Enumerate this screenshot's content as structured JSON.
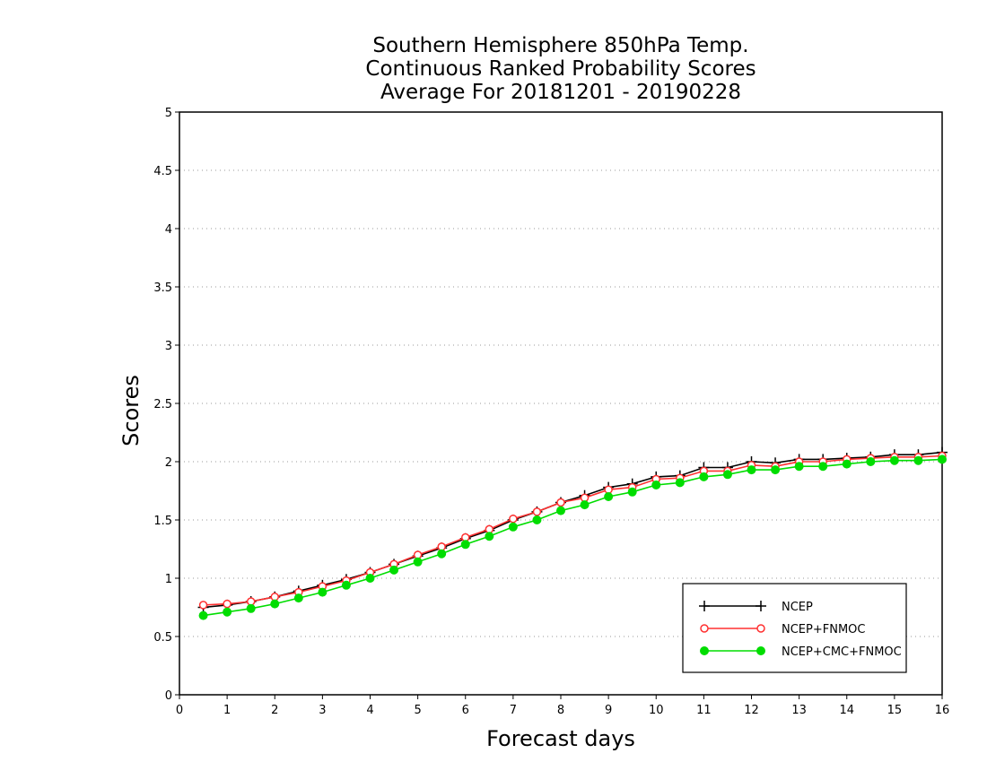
{
  "chart_data": {
    "type": "line",
    "title_lines": [
      "Southern Hemisphere 850hPa Temp.",
      "Continuous Ranked Probability Scores",
      "Average For 20181201 - 20190228"
    ],
    "xlabel": "Forecast days",
    "ylabel": "Scores",
    "xlim": [
      0,
      16
    ],
    "ylim": [
      0,
      5
    ],
    "xticks": [
      0,
      1,
      2,
      3,
      4,
      5,
      6,
      7,
      8,
      9,
      10,
      11,
      12,
      13,
      14,
      15,
      16
    ],
    "yticks": [
      0,
      0.5,
      1,
      1.5,
      2,
      2.5,
      3,
      3.5,
      4,
      4.5,
      5
    ],
    "ytick_labels": [
      "0",
      "0.5",
      "1",
      "1.5",
      "2",
      "2.5",
      "3",
      "3.5",
      "4",
      "4.5",
      "5"
    ],
    "grid": "horizontal-dotted",
    "legend_position": "bottom-right",
    "x": [
      0.5,
      1,
      1.5,
      2,
      2.5,
      3,
      3.5,
      4,
      4.5,
      5,
      5.5,
      6,
      6.5,
      7,
      7.5,
      8,
      8.5,
      9,
      9.5,
      10,
      10.5,
      11,
      11.5,
      12,
      12.5,
      13,
      13.5,
      14,
      14.5,
      15,
      15.5,
      16
    ],
    "series": [
      {
        "name": "NCEP",
        "color": "#000000",
        "marker": "plus",
        "values": [
          0.75,
          0.77,
          0.8,
          0.84,
          0.89,
          0.94,
          0.99,
          1.05,
          1.12,
          1.19,
          1.26,
          1.34,
          1.41,
          1.5,
          1.57,
          1.65,
          1.71,
          1.78,
          1.81,
          1.87,
          1.88,
          1.95,
          1.95,
          2.0,
          1.99,
          2.02,
          2.02,
          2.03,
          2.04,
          2.06,
          2.06,
          2.08
        ]
      },
      {
        "name": "NCEP+FNMOC",
        "color": "#ff3030",
        "marker": "open-circle",
        "values": [
          0.77,
          0.78,
          0.8,
          0.84,
          0.88,
          0.93,
          0.98,
          1.05,
          1.12,
          1.2,
          1.27,
          1.35,
          1.42,
          1.51,
          1.57,
          1.65,
          1.69,
          1.76,
          1.78,
          1.85,
          1.86,
          1.92,
          1.92,
          1.97,
          1.96,
          2.0,
          2.0,
          2.02,
          2.03,
          2.04,
          2.04,
          2.05
        ]
      },
      {
        "name": "NCEP+CMC+FNMOC",
        "color": "#00dd00",
        "marker": "filled-circle",
        "values": [
          0.68,
          0.71,
          0.74,
          0.78,
          0.83,
          0.88,
          0.94,
          1.0,
          1.07,
          1.14,
          1.21,
          1.29,
          1.36,
          1.44,
          1.5,
          1.58,
          1.63,
          1.7,
          1.74,
          1.8,
          1.82,
          1.87,
          1.89,
          1.93,
          1.93,
          1.96,
          1.96,
          1.98,
          2.0,
          2.01,
          2.01,
          2.02
        ]
      }
    ]
  }
}
